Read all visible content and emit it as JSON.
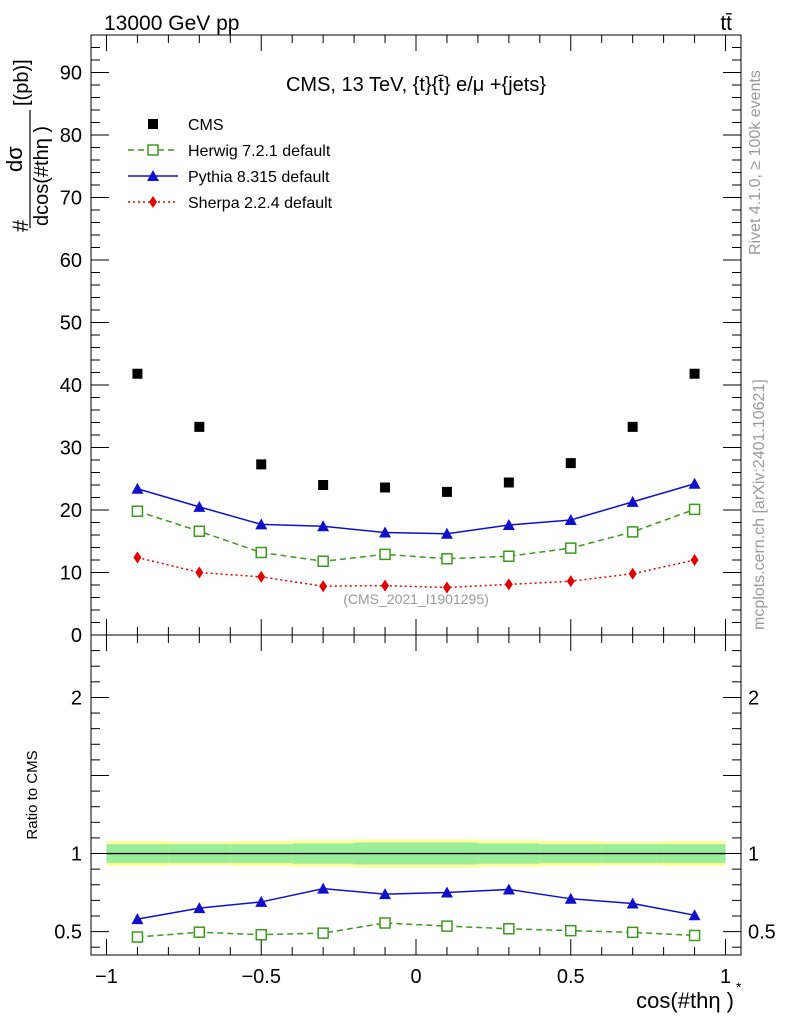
{
  "header": {
    "energy_label": "13000 GeV pp",
    "process_label": "tt̄"
  },
  "side_labels": {
    "rivet": "Rivet 4.1.0, ≥ 100k events",
    "mcplots": "mcplots.cern.ch [arXiv:2401.10621]"
  },
  "chart_data": [
    {
      "type": "scatter",
      "panel": "main",
      "title": "CMS, 13 TeV, {t}{t̄} e/μ +{jets}",
      "ylabel_numerator": "dσ",
      "ylabel_denominator": "dcos(#thη )",
      "ylabel_prefix": "#",
      "ylabel_unit": "[(pb)]",
      "watermark": "(CMS_2021_I1901295)",
      "x": [
        -0.9,
        -0.7,
        -0.5,
        -0.3,
        -0.1,
        0.1,
        0.3,
        0.5,
        0.7,
        0.9
      ],
      "xlim": [
        -1.05,
        1.05
      ],
      "ylim": [
        0,
        96
      ],
      "yticks": [
        0,
        10,
        20,
        30,
        40,
        50,
        60,
        70,
        80,
        90
      ],
      "ytick_labels": [
        "0",
        "10",
        "20",
        "30",
        "40",
        "50",
        "60",
        "70",
        "80",
        "90"
      ],
      "legend_position": "top-left",
      "series": [
        {
          "name": "CMS",
          "style": "black-square",
          "color": "#000000",
          "values": [
            41.8,
            33.3,
            27.3,
            24.0,
            23.6,
            22.9,
            24.4,
            27.5,
            33.3,
            41.8
          ]
        },
        {
          "name": "Herwig 7.2.1 default",
          "style": "open-square-dashed",
          "color": "#3a9a1a",
          "values": [
            19.8,
            16.6,
            13.2,
            11.8,
            12.9,
            12.2,
            12.6,
            13.9,
            16.5,
            20.1
          ],
          "errors": [
            0.5,
            0.5,
            0.5,
            0.5,
            0.5,
            0.5,
            0.5,
            0.5,
            0.5,
            0.5
          ]
        },
        {
          "name": "Pythia 8.315 default",
          "style": "triangle-solid",
          "color": "#1010cc",
          "values": [
            23.4,
            20.5,
            17.7,
            17.4,
            16.4,
            16.2,
            17.6,
            18.4,
            21.3,
            24.2
          ],
          "errors": [
            0.7,
            0.6,
            0.5,
            0.5,
            0.5,
            0.5,
            0.5,
            0.6,
            0.6,
            0.7
          ]
        },
        {
          "name": "Sherpa 2.2.4 default",
          "style": "diamond-dotted",
          "color": "#e00000",
          "values": [
            12.4,
            10.0,
            9.3,
            7.8,
            7.9,
            7.6,
            8.1,
            8.6,
            9.8,
            12.0
          ],
          "errors": [
            0.3,
            0.3,
            0.3,
            0.3,
            0.3,
            0.3,
            0.3,
            0.3,
            0.3,
            0.3
          ]
        }
      ]
    },
    {
      "type": "line",
      "panel": "ratio",
      "ylabel": "Ratio to CMS",
      "xlabel": "cos(#thη )",
      "xlabel_sup": "*",
      "x": [
        -0.9,
        -0.7,
        -0.5,
        -0.3,
        -0.1,
        0.1,
        0.3,
        0.5,
        0.7,
        0.9
      ],
      "xlim": [
        -1.05,
        1.05
      ],
      "ylim": [
        0.35,
        2.4
      ],
      "xticks": [
        -1,
        -0.5,
        0,
        0.5,
        1
      ],
      "xtick_labels": [
        "−1",
        "−0.5",
        "0",
        "0.5",
        "1"
      ],
      "yticks": [
        0.5,
        1,
        2
      ],
      "ytick_labels": [
        "0.5",
        "1",
        "2"
      ],
      "band_bins": [
        -1.0,
        -0.8,
        -0.6,
        -0.4,
        -0.2,
        0.0,
        0.2,
        0.4,
        0.6,
        0.8,
        1.0
      ],
      "band_inner": [
        0.06,
        0.06,
        0.06,
        0.065,
        0.07,
        0.07,
        0.065,
        0.06,
        0.06,
        0.06
      ],
      "band_outer": [
        0.08,
        0.075,
        0.08,
        0.085,
        0.09,
        0.09,
        0.085,
        0.08,
        0.075,
        0.08
      ],
      "series": [
        {
          "name": "Herwig 7.2.1 default",
          "color": "#3a9a1a",
          "values": [
            0.465,
            0.496,
            0.48,
            0.49,
            0.555,
            0.535,
            0.518,
            0.506,
            0.495,
            0.475
          ],
          "errors": [
            0.012,
            0.012,
            0.012,
            0.015,
            0.015,
            0.015,
            0.015,
            0.012,
            0.012,
            0.012
          ]
        },
        {
          "name": "Pythia 8.315 default",
          "color": "#1010cc",
          "values": [
            0.58,
            0.65,
            0.69,
            0.775,
            0.74,
            0.75,
            0.77,
            0.71,
            0.68,
            0.605
          ],
          "errors": [
            0.018,
            0.018,
            0.02,
            0.02,
            0.02,
            0.02,
            0.02,
            0.018,
            0.018,
            0.018
          ]
        }
      ]
    }
  ]
}
